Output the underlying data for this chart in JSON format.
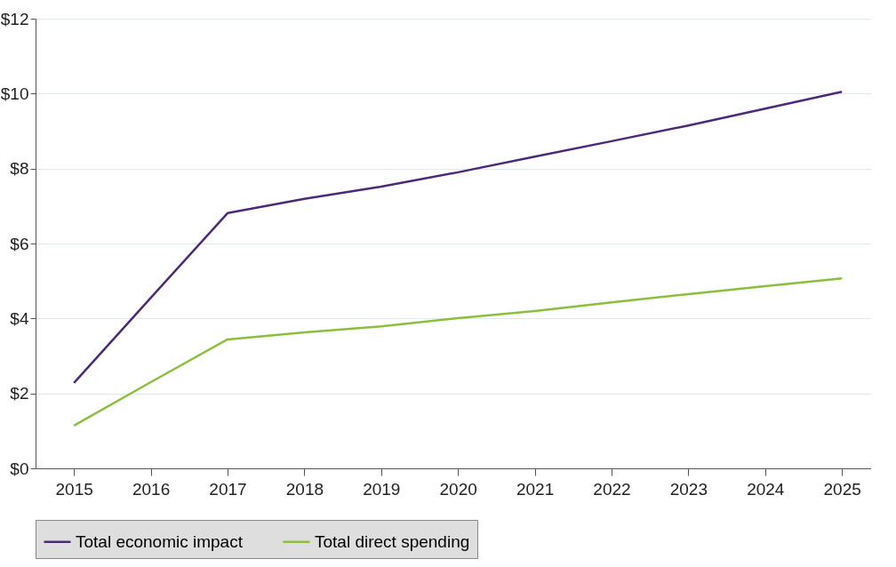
{
  "chart_data": {
    "type": "line",
    "categories": [
      "2015",
      "2016",
      "2017",
      "2018",
      "2019",
      "2020",
      "2021",
      "2022",
      "2023",
      "2024",
      "2025"
    ],
    "series": [
      {
        "name": "Total economic impact",
        "color": "#4b2a7b",
        "values": [
          2.28,
          4.55,
          6.81,
          7.19,
          7.52,
          7.9,
          8.32,
          8.73,
          9.15,
          9.6,
          10.05
        ]
      },
      {
        "name": "Total direct spending",
        "color": "#8cbf3f",
        "values": [
          1.14,
          2.3,
          3.44,
          3.63,
          3.79,
          4.01,
          4.2,
          4.43,
          4.65,
          4.86,
          5.07
        ]
      }
    ],
    "ylim": [
      0,
      12
    ],
    "yticks": [
      {
        "value": 0,
        "label": "$0"
      },
      {
        "value": 2,
        "label": "$2"
      },
      {
        "value": 4,
        "label": "$4"
      },
      {
        "value": 6,
        "label": "$6"
      },
      {
        "value": 8,
        "label": "$8"
      },
      {
        "value": 10,
        "label": "$10"
      },
      {
        "value": 12,
        "label": "$12"
      }
    ],
    "grid": "y",
    "legend": "bottom",
    "marker": "none",
    "line_style": "solid"
  }
}
